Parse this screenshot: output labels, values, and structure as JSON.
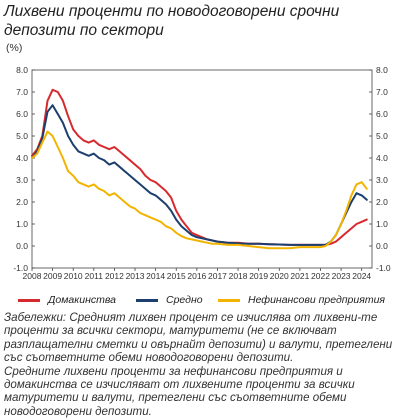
{
  "title": "Лихвени проценти по новодоговорени срочни депозити по сектори",
  "unit": "(%)",
  "colors": {
    "households": "#d62a2f",
    "average": "#1c3f6e",
    "nonfinancial": "#f2b400"
  },
  "legend": [
    {
      "key": "households",
      "label": "Домакинства"
    },
    {
      "key": "average",
      "label": "Средно"
    },
    {
      "key": "nonfinancial",
      "label": "Нефинансови предприятия"
    }
  ],
  "notes": [
    "Забележки: Средният лихвен процент се изчислява от лихвени-те проценти за всички сектори, матуритети (не се включват разплащателни сметки и овърнайт депозити) и валути, претеглени със съответните обеми новодоговорени депозити.",
    "Средните лихвени проценти за нефинансови предприятия и домакинства се изчисляват от лихвените проценти за всички матуритети и валути, претеглени със съответните обеми новодоговорени депозити."
  ],
  "chart_data": {
    "type": "line",
    "ylim": [
      -1.0,
      8.0
    ],
    "yticks": [
      "-1.0",
      "0.0",
      "1.0",
      "2.0",
      "3.0",
      "4.0",
      "5.0",
      "6.0",
      "7.0",
      "8.0"
    ],
    "xlim": [
      2008,
      2024.5
    ],
    "xticks": [
      "2008",
      "2009",
      "2010",
      "2011",
      "2012",
      "2013",
      "2014",
      "2015",
      "2016",
      "2017",
      "2018",
      "2019",
      "2020",
      "2021",
      "2022",
      "2023",
      "2024"
    ],
    "grid": false,
    "legend_position": "bottom",
    "series": [
      {
        "key": "households",
        "name": "Домакинства",
        "x": [
          2008.0,
          2008.25,
          2008.5,
          2008.75,
          2009.0,
          2009.25,
          2009.5,
          2009.75,
          2010.0,
          2010.25,
          2010.5,
          2010.75,
          2011.0,
          2011.25,
          2011.5,
          2011.75,
          2012.0,
          2012.25,
          2012.5,
          2012.75,
          2013.0,
          2013.25,
          2013.5,
          2013.75,
          2014.0,
          2014.25,
          2014.5,
          2014.75,
          2015.0,
          2015.25,
          2015.5,
          2015.75,
          2016.0,
          2016.25,
          2016.5,
          2016.75,
          2017.0,
          2017.5,
          2018.0,
          2018.5,
          2019.0,
          2019.5,
          2020.0,
          2020.5,
          2021.0,
          2021.5,
          2022.0,
          2022.25,
          2022.5,
          2022.75,
          2023.0,
          2023.25,
          2023.5,
          2023.75,
          2024.0,
          2024.25
        ],
        "y": [
          4.1,
          4.4,
          5.0,
          6.6,
          7.1,
          7.0,
          6.6,
          5.9,
          5.3,
          5.0,
          4.8,
          4.7,
          4.8,
          4.6,
          4.5,
          4.4,
          4.5,
          4.3,
          4.1,
          3.9,
          3.7,
          3.5,
          3.2,
          3.0,
          2.9,
          2.7,
          2.5,
          2.2,
          1.6,
          1.2,
          0.9,
          0.6,
          0.5,
          0.4,
          0.3,
          0.25,
          0.2,
          0.15,
          0.15,
          0.1,
          0.1,
          0.08,
          0.07,
          0.05,
          0.05,
          0.05,
          0.05,
          0.05,
          0.1,
          0.2,
          0.4,
          0.6,
          0.8,
          1.0,
          1.1,
          1.2
        ]
      },
      {
        "key": "average",
        "name": "Средно",
        "x": [
          2008.0,
          2008.25,
          2008.5,
          2008.75,
          2009.0,
          2009.25,
          2009.5,
          2009.75,
          2010.0,
          2010.25,
          2010.5,
          2010.75,
          2011.0,
          2011.25,
          2011.5,
          2011.75,
          2012.0,
          2012.25,
          2012.5,
          2012.75,
          2013.0,
          2013.25,
          2013.5,
          2013.75,
          2014.0,
          2014.25,
          2014.5,
          2014.75,
          2015.0,
          2015.25,
          2015.5,
          2015.75,
          2016.0,
          2016.25,
          2016.5,
          2016.75,
          2017.0,
          2017.5,
          2018.0,
          2018.5,
          2019.0,
          2019.5,
          2020.0,
          2020.5,
          2021.0,
          2021.5,
          2022.0,
          2022.25,
          2022.5,
          2022.75,
          2023.0,
          2023.25,
          2023.5,
          2023.75,
          2024.0,
          2024.25
        ],
        "y": [
          4.0,
          4.3,
          4.9,
          6.1,
          6.4,
          6.0,
          5.6,
          5.0,
          4.6,
          4.3,
          4.2,
          4.1,
          4.2,
          4.0,
          3.9,
          3.7,
          3.8,
          3.6,
          3.4,
          3.2,
          3.0,
          2.8,
          2.6,
          2.4,
          2.3,
          2.1,
          1.9,
          1.6,
          1.2,
          0.9,
          0.7,
          0.5,
          0.4,
          0.35,
          0.3,
          0.25,
          0.2,
          0.15,
          0.12,
          0.1,
          0.1,
          0.08,
          0.07,
          0.05,
          0.05,
          0.05,
          0.05,
          0.05,
          0.2,
          0.5,
          1.0,
          1.5,
          2.0,
          2.4,
          2.3,
          2.1
        ]
      },
      {
        "key": "nonfinancial",
        "name": "Нефинансови предприятия",
        "x": [
          2008.0,
          2008.25,
          2008.5,
          2008.75,
          2009.0,
          2009.25,
          2009.5,
          2009.75,
          2010.0,
          2010.25,
          2010.5,
          2010.75,
          2011.0,
          2011.25,
          2011.5,
          2011.75,
          2012.0,
          2012.25,
          2012.5,
          2012.75,
          2013.0,
          2013.25,
          2013.5,
          2013.75,
          2014.0,
          2014.25,
          2014.5,
          2014.75,
          2015.0,
          2015.25,
          2015.5,
          2015.75,
          2016.0,
          2016.25,
          2016.5,
          2016.75,
          2017.0,
          2017.5,
          2018.0,
          2018.5,
          2019.0,
          2019.5,
          2020.0,
          2020.5,
          2021.0,
          2021.5,
          2022.0,
          2022.25,
          2022.5,
          2022.75,
          2023.0,
          2023.25,
          2023.5,
          2023.75,
          2024.0,
          2024.25
        ],
        "y": [
          4.0,
          4.2,
          4.7,
          5.2,
          5.0,
          4.5,
          4.0,
          3.4,
          3.2,
          2.9,
          2.8,
          2.7,
          2.8,
          2.6,
          2.5,
          2.3,
          2.4,
          2.2,
          2.0,
          1.8,
          1.7,
          1.5,
          1.4,
          1.3,
          1.2,
          1.1,
          0.9,
          0.8,
          0.6,
          0.45,
          0.35,
          0.3,
          0.25,
          0.2,
          0.15,
          0.1,
          0.1,
          0.05,
          0.05,
          0.0,
          -0.05,
          -0.1,
          -0.1,
          -0.1,
          -0.05,
          -0.05,
          -0.05,
          0.0,
          0.2,
          0.5,
          1.0,
          1.6,
          2.3,
          2.8,
          2.9,
          2.6
        ]
      }
    ]
  }
}
